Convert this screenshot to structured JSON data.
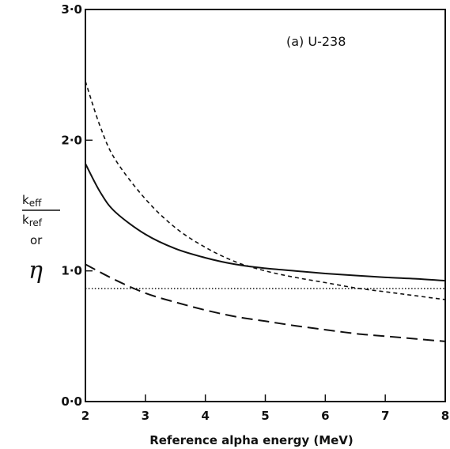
{
  "chart_data": {
    "type": "line",
    "title": "",
    "annotation": "(a) U-238",
    "xlabel": "Reference alpha energy (MeV)",
    "ylabel": {
      "numerator": "k",
      "numerator_sub": "eff",
      "denominator": "k",
      "denominator_sub": "ref",
      "connector": "or",
      "symbol": "η"
    },
    "xlim": [
      2,
      8
    ],
    "ylim": [
      0,
      3
    ],
    "xticks": [
      2,
      3,
      4,
      5,
      6,
      7,
      8
    ],
    "xtick_labels": [
      "2",
      "3",
      "4",
      "5",
      "6",
      "7",
      "8"
    ],
    "yticks": [
      0,
      1,
      2,
      3
    ],
    "ytick_labels": [
      "0·0",
      "1·0",
      "2·0",
      "3·0"
    ],
    "grid": false,
    "legend": "none",
    "series": [
      {
        "style": "solid",
        "x": [
          2.0,
          2.25,
          2.5,
          3.0,
          3.5,
          4.0,
          4.5,
          5.0,
          5.5,
          6.0,
          6.5,
          7.0,
          7.5,
          8.0
        ],
        "y": [
          1.82,
          1.6,
          1.45,
          1.28,
          1.17,
          1.1,
          1.05,
          1.02,
          1.0,
          0.98,
          0.965,
          0.95,
          0.94,
          0.925
        ]
      },
      {
        "style": "short-dash",
        "x": [
          2.0,
          2.25,
          2.5,
          3.0,
          3.5,
          4.0,
          4.5,
          5.0,
          5.5,
          6.0,
          6.5,
          7.0,
          7.5,
          8.0
        ],
        "y": [
          2.45,
          2.1,
          1.85,
          1.55,
          1.33,
          1.18,
          1.07,
          1.0,
          0.95,
          0.91,
          0.87,
          0.84,
          0.81,
          0.78
        ]
      },
      {
        "style": "long-dash",
        "x": [
          2.0,
          2.5,
          3.0,
          3.5,
          4.0,
          4.5,
          5.0,
          5.5,
          6.0,
          6.5,
          7.0,
          7.5,
          8.0
        ],
        "y": [
          1.05,
          0.93,
          0.83,
          0.76,
          0.7,
          0.65,
          0.615,
          0.58,
          0.55,
          0.52,
          0.5,
          0.48,
          0.46
        ]
      },
      {
        "style": "dotted",
        "x": [
          2.0,
          8.0
        ],
        "y": [
          0.865,
          0.865
        ]
      }
    ]
  }
}
